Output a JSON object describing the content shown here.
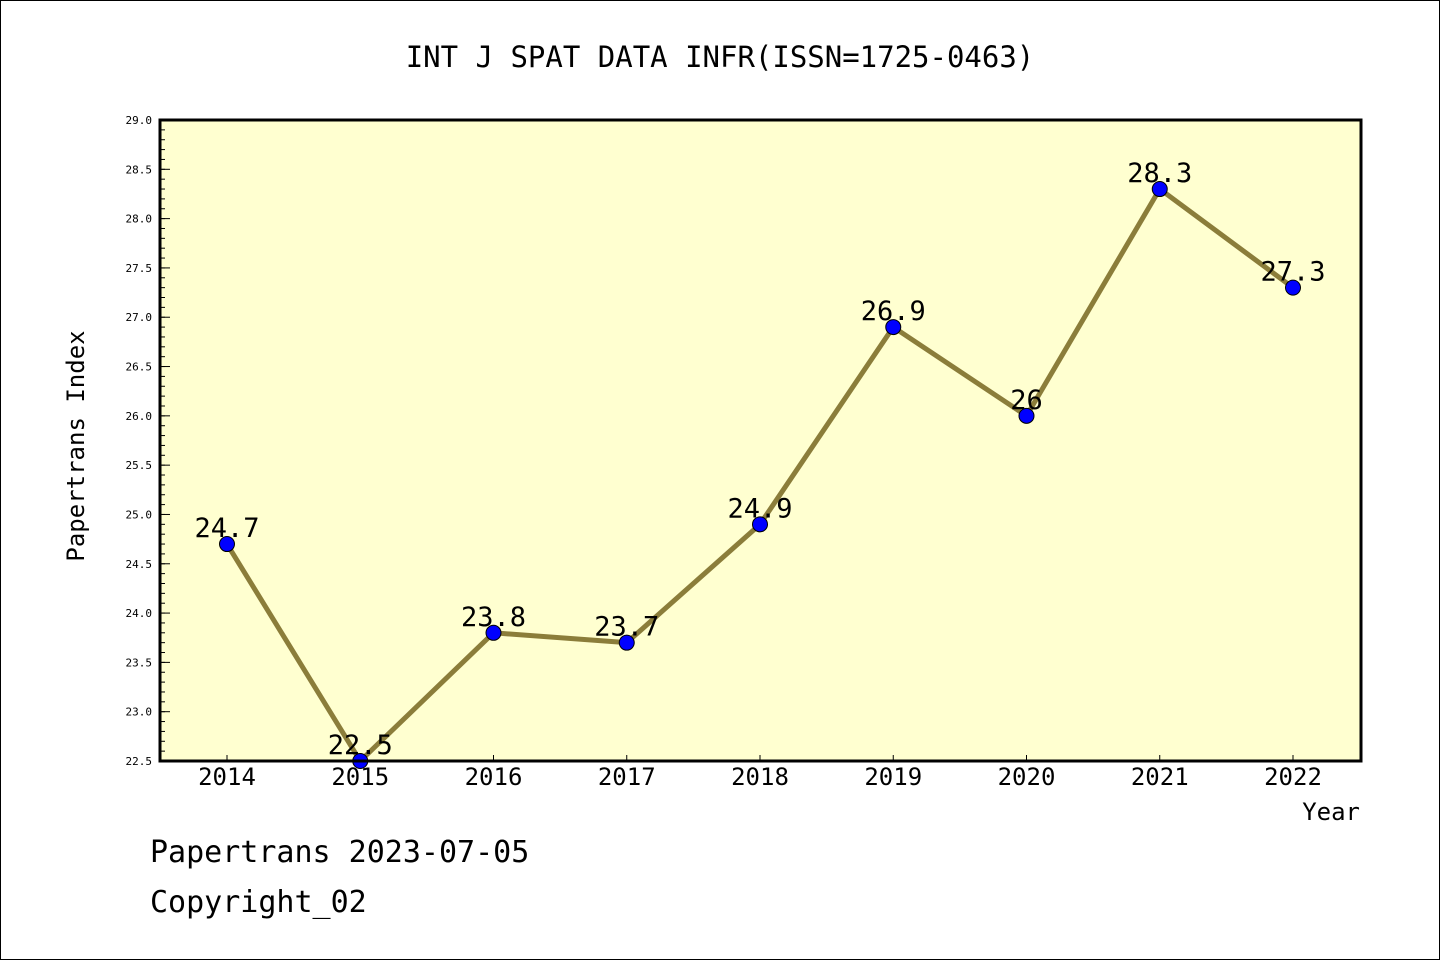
{
  "chart_data": {
    "type": "line",
    "title": "INT J SPAT DATA INFR(ISSN=1725-0463)",
    "xlabel": "Year",
    "ylabel": "Papertrans Index",
    "categories": [
      "2014",
      "2015",
      "2016",
      "2017",
      "2018",
      "2019",
      "2020",
      "2021",
      "2022"
    ],
    "values": [
      24.7,
      22.5,
      23.8,
      23.7,
      24.9,
      26.9,
      26.0,
      28.3,
      27.3
    ],
    "data_labels": [
      "24.7",
      "22.5",
      "23.8",
      "23.7",
      "24.9",
      "26.9",
      "26",
      "28.3",
      "27.3"
    ],
    "ylim": [
      22.5,
      29.0
    ],
    "yticks": [
      "22.5",
      "23.0",
      "23.5",
      "24.0",
      "24.5",
      "25.0",
      "25.5",
      "26.0",
      "26.5",
      "27.0",
      "27.5",
      "28.0",
      "28.5",
      "29.0"
    ],
    "grid": false,
    "legend": "none",
    "colors": {
      "plot_background": "#ffffd0",
      "line": "#8b7d3a",
      "marker": "#0000ff"
    }
  },
  "footer": {
    "line1": "Papertrans 2023-07-05",
    "line2": "Copyright_02"
  }
}
